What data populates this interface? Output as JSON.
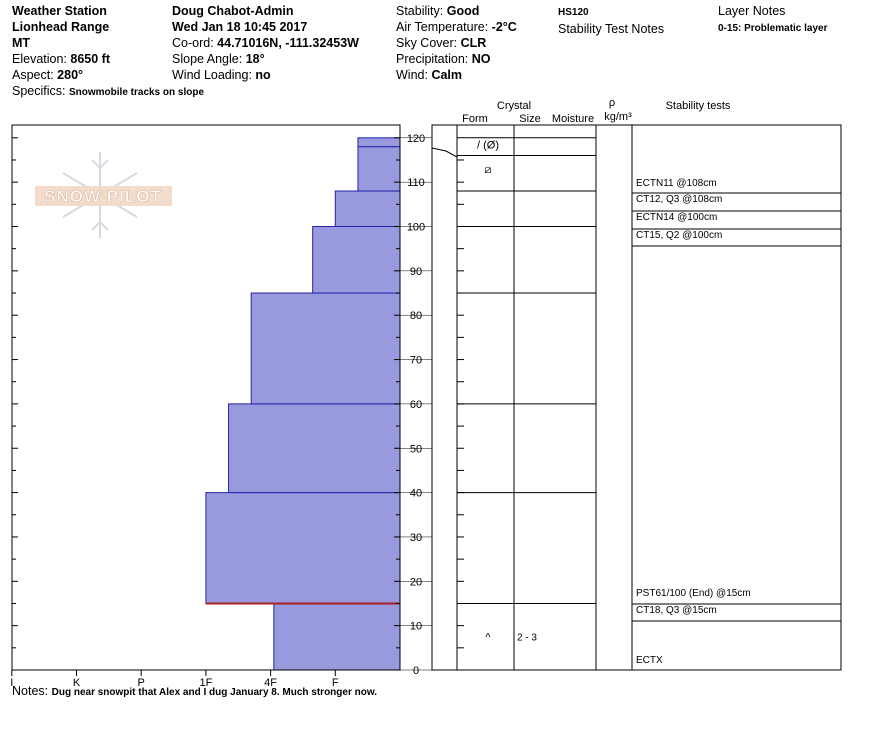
{
  "header": {
    "col1": {
      "line1": "Weather Station",
      "line2": "Lionhead Range",
      "line3": "MT",
      "elevation_label": "Elevation:",
      "elevation_value": "8650 ft",
      "aspect_label": "Aspect:",
      "aspect_value": "280°",
      "specifics_label": "Specifics:",
      "specifics_value": "Snowmobile tracks on slope"
    },
    "col2": {
      "observer": "Doug Chabot-Admin",
      "datetime": "Wed Jan 18 10:45 2017",
      "coord_label": "Co-ord:",
      "coord_value": "44.71016N, -111.32453W",
      "slope_label": "Slope Angle:",
      "slope_value": "18°",
      "wind_loading_label": "Wind Loading:",
      "wind_loading_value": "no"
    },
    "col3": {
      "stability_label": "Stability:",
      "stability_value": "Good",
      "air_temp_label": "Air Temperature:",
      "air_temp_value": "-2°C",
      "sky_label": "Sky Cover:",
      "sky_value": "CLR",
      "precip_label": "Precipitation:",
      "precip_value": "NO",
      "wind_label": "Wind:",
      "wind_value": "Calm"
    },
    "col4": {
      "hs": "HS120",
      "stability_test_notes": "Stability Test Notes"
    },
    "col5": {
      "layer_notes": "Layer Notes",
      "layer_note_1": "0-15: Problematic layer"
    }
  },
  "table_headers": {
    "crystal": "Crystal",
    "form": "Form",
    "size": "Size",
    "moisture": "Moisture",
    "rho": "ρ",
    "density_unit": "kg/m³",
    "stability_tests": "Stability tests"
  },
  "notes": {
    "label": "Notes:",
    "value": "Dug near snowpit that Alex and I dug January 8. Much stronger now."
  },
  "logo_text": "SNOW PILOT",
  "colors": {
    "layer_fill": "#9999dd",
    "layer_stroke": "#2222aa",
    "problem_layer": "#aa2222"
  },
  "chart_data": {
    "type": "bar",
    "orientation": "horizontal",
    "x_axis": {
      "categories": [
        "I",
        "K",
        "P",
        "1F",
        "4F",
        "F"
      ],
      "category_values": [
        6,
        5,
        4,
        3,
        2,
        1
      ]
    },
    "y_axis": {
      "ylim": [
        0,
        123
      ],
      "ticks": [
        0,
        10,
        20,
        30,
        40,
        50,
        60,
        70,
        80,
        90,
        100,
        110,
        120
      ]
    },
    "layers": [
      {
        "bottom": 0,
        "top": 15,
        "hardness": 1.95
      },
      {
        "bottom": 15,
        "top": 40,
        "hardness": 3.0
      },
      {
        "bottom": 40,
        "top": 60,
        "hardness": 2.65
      },
      {
        "bottom": 60,
        "top": 85,
        "hardness": 2.3
      },
      {
        "bottom": 85,
        "top": 100,
        "hardness": 1.35
      },
      {
        "bottom": 100,
        "top": 108,
        "hardness": 1.0
      },
      {
        "bottom": 108,
        "top": 118,
        "hardness": 0.65
      },
      {
        "bottom": 118,
        "top": 120,
        "hardness": 0.65
      }
    ],
    "problem_layer_height": 15,
    "crystals": [
      {
        "height": 118.5,
        "form": "/ (Ø)",
        "size": ""
      },
      {
        "height": 113,
        "form": "⧄",
        "size": ""
      },
      {
        "height": 7.5,
        "form": "^",
        "size": "2 - 3"
      }
    ],
    "test_rows": [
      {
        "label": "ECTN11 @108cm"
      },
      {
        "label": "CT12, Q3 @108cm"
      },
      {
        "label": "ECTN14 @100cm"
      },
      {
        "label": "CT15, Q2 @100cm"
      },
      {
        "label": "PST61/100 (End) @15cm"
      },
      {
        "label": "CT18, Q3 @15cm"
      },
      {
        "label": "ECTX"
      }
    ]
  }
}
